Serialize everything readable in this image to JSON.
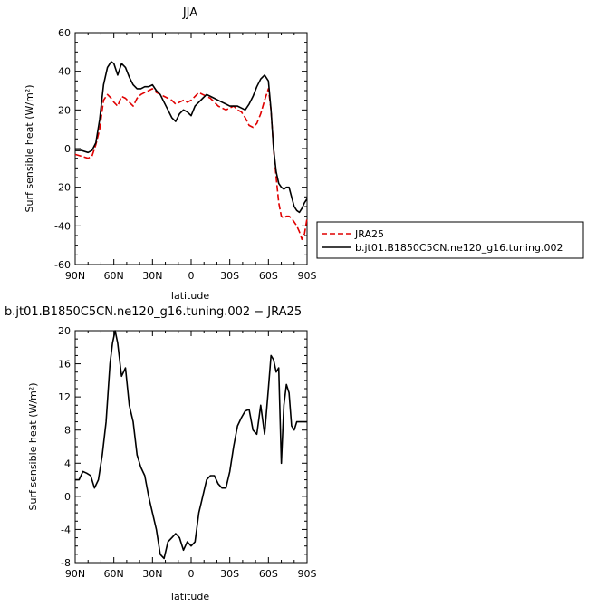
{
  "chart_data": [
    {
      "type": "line",
      "title": "JJA",
      "xlabel": "latitude",
      "ylabel": "Surf sensible heat (W/m²)",
      "xlim": [
        90,
        -90
      ],
      "ylim": [
        -60,
        60
      ],
      "x_tick_values": [
        90,
        60,
        30,
        0,
        -30,
        -60,
        -90
      ],
      "x_tick_labels": [
        "90N",
        "60N",
        "30N",
        "0",
        "30S",
        "60S",
        "90S"
      ],
      "y_ticks": [
        -60,
        -40,
        -20,
        0,
        20,
        40,
        60
      ],
      "legend_position": "right",
      "series": [
        {
          "name": "JRA25",
          "color": "#e00000",
          "dash": "dashed",
          "x": [
            90,
            85,
            80,
            77,
            74,
            71,
            68,
            65,
            62,
            60,
            57,
            54,
            51,
            48,
            45,
            42,
            39,
            36,
            33,
            30,
            27,
            24,
            21,
            18,
            15,
            12,
            9,
            6,
            3,
            0,
            -3,
            -6,
            -9,
            -12,
            -15,
            -18,
            -21,
            -24,
            -27,
            -30,
            -33,
            -36,
            -39,
            -42,
            -45,
            -48,
            -51,
            -54,
            -57,
            -60,
            -62,
            -64,
            -66,
            -68,
            -70,
            -72,
            -74,
            -76,
            -78,
            -80,
            -82,
            -84,
            -86,
            -88,
            -90
          ],
          "y": [
            -3,
            -4,
            -5,
            -4,
            2,
            10,
            25,
            28,
            26,
            24,
            22,
            27,
            26,
            24,
            22,
            26,
            28,
            29,
            30,
            31,
            29,
            28,
            27,
            26,
            25,
            23,
            24,
            25,
            24,
            25,
            27,
            29,
            28,
            27,
            26,
            24,
            22,
            21,
            20,
            21,
            22,
            20,
            19,
            16,
            12,
            11,
            13,
            18,
            25,
            31,
            20,
            0,
            -15,
            -28,
            -35,
            -36,
            -35,
            -35,
            -36,
            -38,
            -40,
            -43,
            -47,
            -44,
            -36
          ]
        },
        {
          "name": "b.jt01.B1850C5CN.ne120_g16.tuning.002",
          "color": "#000000",
          "dash": "solid",
          "x": [
            90,
            85,
            80,
            77,
            74,
            71,
            68,
            65,
            62,
            60,
            57,
            54,
            51,
            48,
            45,
            42,
            39,
            36,
            33,
            30,
            27,
            24,
            21,
            18,
            15,
            12,
            9,
            6,
            3,
            0,
            -3,
            -6,
            -9,
            -12,
            -15,
            -18,
            -21,
            -24,
            -27,
            -30,
            -33,
            -36,
            -39,
            -42,
            -45,
            -48,
            -51,
            -54,
            -57,
            -60,
            -62,
            -64,
            -66,
            -68,
            -70,
            -72,
            -74,
            -76,
            -78,
            -80,
            -82,
            -84,
            -86,
            -88,
            -90
          ],
          "y": [
            -1,
            -1,
            -2,
            -1,
            3,
            15,
            33,
            42,
            45,
            44,
            38,
            44,
            42,
            37,
            33,
            31,
            31,
            32,
            32,
            33,
            30,
            28,
            24,
            20,
            16,
            14,
            18,
            20,
            19,
            17,
            22,
            24,
            26,
            28,
            27,
            26,
            25,
            24,
            23,
            22,
            22,
            22,
            21,
            20,
            23,
            27,
            32,
            36,
            38,
            35,
            20,
            0,
            -12,
            -18,
            -20,
            -21,
            -20,
            -20,
            -25,
            -30,
            -32,
            -33,
            -31,
            -28,
            -26
          ]
        }
      ]
    },
    {
      "type": "line",
      "title": "b.jt01.B1850C5CN.ne120_g16.tuning.002 − JRA25",
      "xlabel": "latitude",
      "ylabel": "Surf sensible heat (W/m²)",
      "xlim": [
        90,
        -90
      ],
      "ylim": [
        -8,
        20
      ],
      "x_tick_values": [
        90,
        60,
        30,
        0,
        -30,
        -60,
        -90
      ],
      "x_tick_labels": [
        "90N",
        "60N",
        "30N",
        "0",
        "30S",
        "60S",
        "90S"
      ],
      "y_ticks": [
        -8,
        -4,
        0,
        4,
        8,
        12,
        16,
        20
      ],
      "series": [
        {
          "name": "",
          "color": "#000000",
          "dash": "solid",
          "x": [
            90,
            87,
            84,
            81,
            78,
            75,
            72,
            69,
            66,
            63,
            61,
            59,
            57,
            54,
            51,
            48,
            45,
            42,
            39,
            36,
            33,
            30,
            27,
            24,
            21,
            18,
            15,
            12,
            9,
            6,
            3,
            0,
            -3,
            -6,
            -9,
            -12,
            -15,
            -18,
            -21,
            -24,
            -27,
            -30,
            -33,
            -36,
            -39,
            -42,
            -45,
            -48,
            -51,
            -54,
            -57,
            -60,
            -62,
            -64,
            -66,
            -68,
            -70,
            -72,
            -74,
            -76,
            -78,
            -80,
            -82,
            -84,
            -86,
            -88,
            -90
          ],
          "y": [
            2.0,
            2.0,
            3.0,
            2.8,
            2.5,
            1.0,
            2.0,
            5.0,
            9.0,
            16.0,
            18.5,
            20.0,
            18.5,
            14.5,
            15.5,
            11.0,
            9.0,
            5.0,
            3.5,
            2.5,
            0.0,
            -2.0,
            -4.0,
            -7.0,
            -7.5,
            -5.5,
            -5.0,
            -4.5,
            -5.0,
            -6.5,
            -5.5,
            -6.0,
            -5.5,
            -2.0,
            0.0,
            2.0,
            2.5,
            2.5,
            1.5,
            1.0,
            1.0,
            3.0,
            6.0,
            8.5,
            9.5,
            10.3,
            10.5,
            8.0,
            7.5,
            11.0,
            7.5,
            13.0,
            17.0,
            16.5,
            15.0,
            15.5,
            4.0,
            11.0,
            13.5,
            12.5,
            8.5,
            8.0,
            9.0,
            9.0,
            9.0,
            9.0,
            9.0
          ]
        }
      ]
    }
  ]
}
